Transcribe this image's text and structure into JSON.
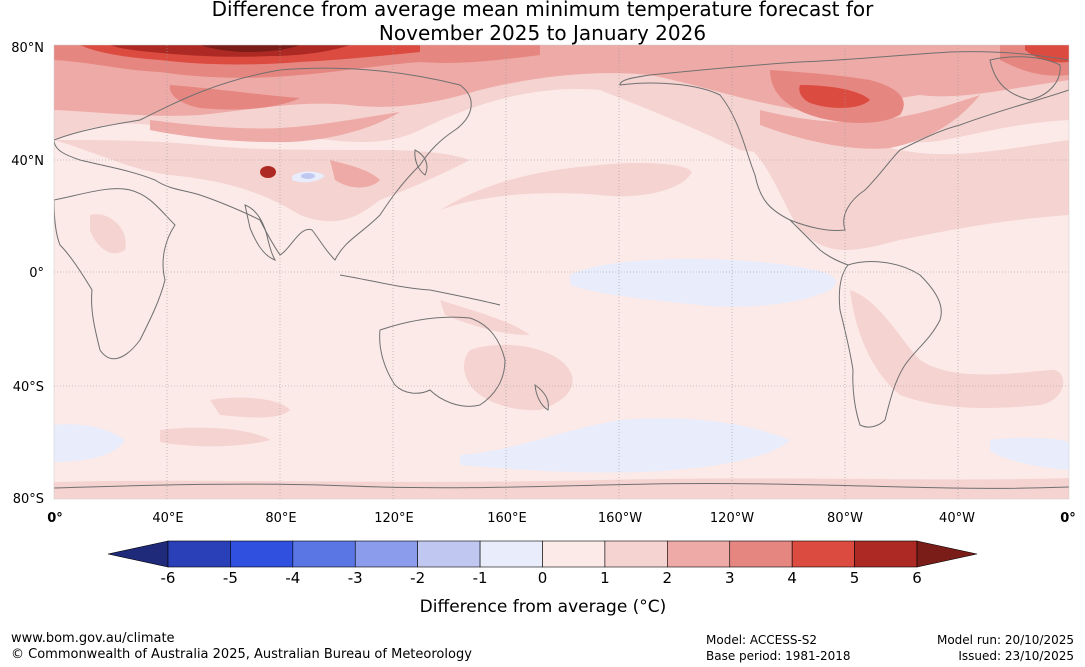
{
  "title": {
    "line1": "Difference from average mean minimum temperature forecast for",
    "line2": "November 2025 to January 2026"
  },
  "map": {
    "lat_labels": [
      "80°N",
      "40°N",
      "0°",
      "40°S",
      "80°S"
    ],
    "lon_labels": [
      "0°",
      "40°E",
      "80°E",
      "120°E",
      "160°E",
      "160°W",
      "120°W",
      "80°W",
      "40°W",
      "0°"
    ],
    "colors": {
      "ocean_base": "#fbeae8",
      "coast": "#707070",
      "grid": "#9a9a9a"
    }
  },
  "colorbar": {
    "ticks": [
      "-6",
      "-5",
      "-4",
      "-3",
      "-2",
      "-1",
      "0",
      "1",
      "2",
      "3",
      "4",
      "5",
      "6"
    ],
    "colors": [
      "#1f2b7a",
      "#2a40b8",
      "#3050e0",
      "#5a75e4",
      "#8a9ceb",
      "#c0c8f2",
      "#e8ecfb",
      "#fbeae8",
      "#f5d3d1",
      "#eeaaa6",
      "#e68680",
      "#dc4b40",
      "#ad2a24",
      "#7a1c17"
    ],
    "label": "Difference from average (°C)"
  },
  "footer": {
    "url": "www.bom.gov.au/climate",
    "copyright": "© Commonwealth of Australia 2025, Australian Bureau of Meteorology",
    "model": "Model: ACCESS-S2",
    "base_period": "Base period: 1981-2018",
    "model_run": "Model run: 20/10/2025",
    "issued": "Issued: 23/10/2025"
  }
}
